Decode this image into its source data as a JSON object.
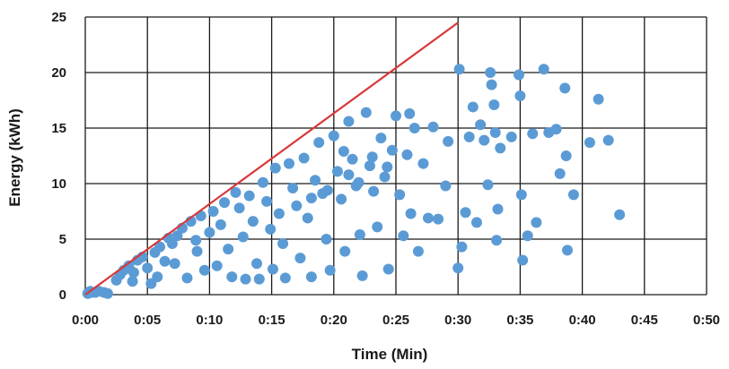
{
  "chart_data": {
    "type": "scatter",
    "xlabel": "Time (Min)",
    "ylabel": "Energy (kWh)",
    "xlim": [
      0,
      50
    ],
    "ylim": [
      0,
      25
    ],
    "x_ticks": [
      0,
      5,
      10,
      15,
      20,
      25,
      30,
      35,
      40,
      45,
      50
    ],
    "x_tick_labels": [
      "0:00",
      "0:05",
      "0:10",
      "0:15",
      "0:20",
      "0:25",
      "0:30",
      "0:35",
      "0:40",
      "0:45",
      "0:50"
    ],
    "y_ticks": [
      0,
      5,
      10,
      15,
      20,
      25
    ],
    "y_tick_labels": [
      "0",
      "5",
      "10",
      "15",
      "20",
      "25"
    ],
    "grid": true,
    "legend": "none",
    "colors": {
      "points": "#5b9bd5",
      "line": "#d9383a",
      "grid": "#1a1a1a",
      "text": "#1a1a1a"
    },
    "line": {
      "points": [
        [
          0,
          0
        ],
        [
          30,
          24.5
        ]
      ]
    },
    "series": [
      {
        "values": [
          [
            0.2,
            0.1
          ],
          [
            0.5,
            0.2
          ],
          [
            0.8,
            0.2
          ],
          [
            1.1,
            0.3
          ],
          [
            1.5,
            0.2
          ],
          [
            1.8,
            0.1
          ],
          [
            0.4,
            0.3
          ],
          [
            2.5,
            1.3
          ],
          [
            2.8,
            1.8
          ],
          [
            3.1,
            2.2
          ],
          [
            3.5,
            2.6
          ],
          [
            3.9,
            2.0
          ],
          [
            4.2,
            3.1
          ],
          [
            4.6,
            3.4
          ],
          [
            3.8,
            1.2
          ],
          [
            5.0,
            2.4
          ],
          [
            5.3,
            1.0
          ],
          [
            5.6,
            3.8
          ],
          [
            6.0,
            4.3
          ],
          [
            6.4,
            3.0
          ],
          [
            6.7,
            5.1
          ],
          [
            7.0,
            4.6
          ],
          [
            5.8,
            1.6
          ],
          [
            7.4,
            5.3
          ],
          [
            7.8,
            6.0
          ],
          [
            8.2,
            1.5
          ],
          [
            8.5,
            6.6
          ],
          [
            8.9,
            4.9
          ],
          [
            9.3,
            7.1
          ],
          [
            9.6,
            2.2
          ],
          [
            7.2,
            2.8
          ],
          [
            10.0,
            5.6
          ],
          [
            10.3,
            7.5
          ],
          [
            10.6,
            2.6
          ],
          [
            10.9,
            6.3
          ],
          [
            11.2,
            8.3
          ],
          [
            11.5,
            4.1
          ],
          [
            11.8,
            1.6
          ],
          [
            9.0,
            3.9
          ],
          [
            12.1,
            9.2
          ],
          [
            12.4,
            7.8
          ],
          [
            12.7,
            5.2
          ],
          [
            12.9,
            1.4
          ],
          [
            13.2,
            8.9
          ],
          [
            13.5,
            6.6
          ],
          [
            13.8,
            2.8
          ],
          [
            14.0,
            1.4
          ],
          [
            14.3,
            10.1
          ],
          [
            14.6,
            8.4
          ],
          [
            14.9,
            5.9
          ],
          [
            15.1,
            2.3
          ],
          [
            15.3,
            11.4
          ],
          [
            15.6,
            7.3
          ],
          [
            15.9,
            4.6
          ],
          [
            16.1,
            1.5
          ],
          [
            16.4,
            11.8
          ],
          [
            16.7,
            9.6
          ],
          [
            17.0,
            8.0
          ],
          [
            17.3,
            3.3
          ],
          [
            17.6,
            12.3
          ],
          [
            17.9,
            6.9
          ],
          [
            18.2,
            1.6
          ],
          [
            18.5,
            10.3
          ],
          [
            18.8,
            13.7
          ],
          [
            19.1,
            9.1
          ],
          [
            19.4,
            5.0
          ],
          [
            19.7,
            2.2
          ],
          [
            20.0,
            14.3
          ],
          [
            20.3,
            11.1
          ],
          [
            20.6,
            8.6
          ],
          [
            20.9,
            3.9
          ],
          [
            21.2,
            15.6
          ],
          [
            21.5,
            12.2
          ],
          [
            21.8,
            9.8
          ],
          [
            22.1,
            5.4
          ],
          [
            22.3,
            1.7
          ],
          [
            22.6,
            16.4
          ],
          [
            22.9,
            11.6
          ],
          [
            23.2,
            9.3
          ],
          [
            23.5,
            6.1
          ],
          [
            23.8,
            14.1
          ],
          [
            24.1,
            10.6
          ],
          [
            24.4,
            2.3
          ],
          [
            24.7,
            13.0
          ],
          [
            25.0,
            16.1
          ],
          [
            25.3,
            9.0
          ],
          [
            25.6,
            5.3
          ],
          [
            25.9,
            12.6
          ],
          [
            26.2,
            7.3
          ],
          [
            26.5,
            15.0
          ],
          [
            26.8,
            3.9
          ],
          [
            27.2,
            11.8
          ],
          [
            27.6,
            6.9
          ],
          [
            28.0,
            15.1
          ],
          [
            28.4,
            6.8
          ],
          [
            29.0,
            9.8
          ],
          [
            29.2,
            13.8
          ],
          [
            30.1,
            20.3
          ],
          [
            30.0,
            2.4
          ],
          [
            30.3,
            4.3
          ],
          [
            30.6,
            7.4
          ],
          [
            30.9,
            14.2
          ],
          [
            31.2,
            16.9
          ],
          [
            31.5,
            6.5
          ],
          [
            31.8,
            15.3
          ],
          [
            32.1,
            13.9
          ],
          [
            32.4,
            9.9
          ],
          [
            32.6,
            20.0
          ],
          [
            32.9,
            17.1
          ],
          [
            32.7,
            18.9
          ],
          [
            33.0,
            14.6
          ],
          [
            33.2,
            7.7
          ],
          [
            33.4,
            13.2
          ],
          [
            33.1,
            4.9
          ],
          [
            34.3,
            14.2
          ],
          [
            34.9,
            19.8
          ],
          [
            35.0,
            17.9
          ],
          [
            35.1,
            9.0
          ],
          [
            35.2,
            3.1
          ],
          [
            35.6,
            5.3
          ],
          [
            36.0,
            14.5
          ],
          [
            36.3,
            6.5
          ],
          [
            36.9,
            20.3
          ],
          [
            37.3,
            14.6
          ],
          [
            37.9,
            14.9
          ],
          [
            38.2,
            10.9
          ],
          [
            38.6,
            18.6
          ],
          [
            38.7,
            12.5
          ],
          [
            38.8,
            4.0
          ],
          [
            39.3,
            9.0
          ],
          [
            40.6,
            13.7
          ],
          [
            41.3,
            17.6
          ],
          [
            42.1,
            13.9
          ],
          [
            43.0,
            7.2
          ],
          [
            26.1,
            16.3
          ],
          [
            21.2,
            10.8
          ],
          [
            22.0,
            10.1
          ],
          [
            23.1,
            12.4
          ],
          [
            24.3,
            11.5
          ],
          [
            19.5,
            9.4
          ],
          [
            18.2,
            8.7
          ],
          [
            20.8,
            12.9
          ]
        ]
      }
    ]
  }
}
